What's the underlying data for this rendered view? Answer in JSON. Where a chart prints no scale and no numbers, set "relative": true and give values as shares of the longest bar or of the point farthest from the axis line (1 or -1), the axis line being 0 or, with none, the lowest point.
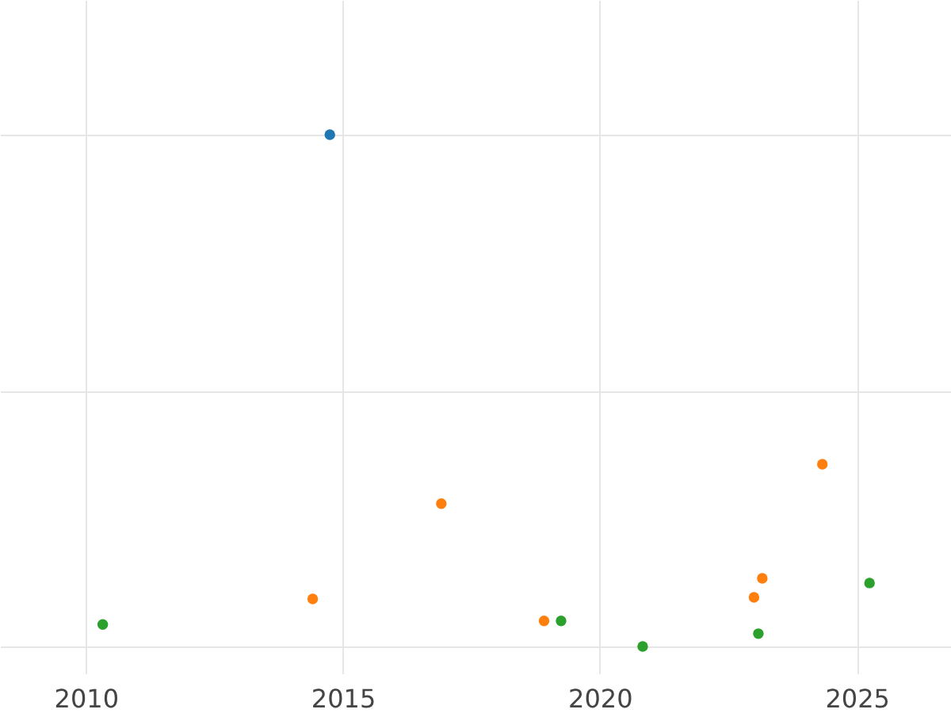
{
  "chart_data": {
    "type": "scatter",
    "relative": true,
    "grid": true,
    "marker": "circle",
    "xlim": [
      "2008-05",
      "2026-11"
    ],
    "xticks": [
      "2010",
      "2015",
      "2020",
      "2025"
    ],
    "series": [
      {
        "color": "#1f77b4",
        "x": [
          "2014-10"
        ],
        "values": [
          1
        ]
      },
      {
        "color": "#ff7f0e",
        "x": [
          "2014-06",
          "2016-12",
          "2018-12",
          "2023-01",
          "2023-03",
          "2024-05"
        ],
        "values": [
          0.093,
          0.279,
          0.05,
          0.096,
          0.133,
          0.356
        ]
      },
      {
        "color": "#2ca02c",
        "x": [
          "2010-05",
          "2019-04",
          "2020-11",
          "2023-02",
          "2025-04"
        ],
        "values": [
          0.043,
          0.05,
          0,
          0.025,
          0.124
        ]
      }
    ]
  }
}
